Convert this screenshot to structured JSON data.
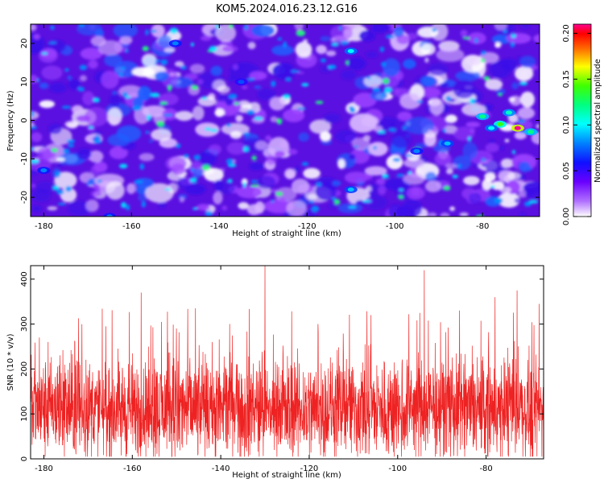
{
  "figure": {
    "title": "KOM5.2024.016.23.12.G16"
  },
  "chart_data": [
    {
      "type": "heatmap",
      "title": "KOM5.2024.016.23.12.G16",
      "xlabel": "Height of straight line (km)",
      "ylabel": "Frequency (Hz)",
      "xlim": [
        -183,
        -67
      ],
      "ylim": [
        -25,
        25
      ],
      "xticks": [
        -180,
        -160,
        -140,
        -120,
        -100,
        -80
      ],
      "yticks": [
        -20,
        -10,
        0,
        10,
        20
      ],
      "colorbar": {
        "label": "Normalized spectral amplitude",
        "range": [
          0,
          0.21
        ],
        "ticks": [
          "0.00",
          "0.05",
          "0.10",
          "0.15",
          "0.20"
        ],
        "colormap": [
          "#ffffff",
          "#8a00ff",
          "#2a00ff",
          "#0066ff",
          "#00ffff",
          "#00ff66",
          "#66ff00",
          "#ffff00",
          "#ff6600",
          "#ff0000",
          "#ff00aa"
        ]
      },
      "hotspots": [
        {
          "x": -80,
          "y": 1,
          "value": 0.12
        },
        {
          "x": -76,
          "y": -1,
          "value": 0.14
        },
        {
          "x": -72,
          "y": -2,
          "value": 0.21
        },
        {
          "x": -69,
          "y": -3,
          "value": 0.12
        },
        {
          "x": -74,
          "y": 2,
          "value": 0.11
        },
        {
          "x": -78,
          "y": -2,
          "value": 0.1
        },
        {
          "x": -110,
          "y": 18,
          "value": 0.1
        },
        {
          "x": -110,
          "y": -18,
          "value": 0.09
        },
        {
          "x": -180,
          "y": -13,
          "value": 0.08
        },
        {
          "x": -165,
          "y": -25,
          "value": 0.08
        },
        {
          "x": -150,
          "y": 20,
          "value": 0.08
        },
        {
          "x": -135,
          "y": 10,
          "value": 0.07
        },
        {
          "x": -95,
          "y": -8,
          "value": 0.08
        },
        {
          "x": -88,
          "y": -6,
          "value": 0.09
        }
      ]
    },
    {
      "type": "line",
      "xlabel": "Height of straight line (km)",
      "ylabel": "SNR (10 * v/v)",
      "xlim": [
        -183,
        -67
      ],
      "ylim": [
        0,
        430
      ],
      "xticks": [
        -180,
        -160,
        -140,
        -120,
        -100,
        -80
      ],
      "yticks": [
        0,
        100,
        200,
        300,
        400
      ],
      "color": "#ee2222",
      "baseline": 110,
      "noise_min": 5,
      "peaks": [
        {
          "x": -181,
          "y": 270
        },
        {
          "x": -173,
          "y": 260
        },
        {
          "x": -166,
          "y": 295
        },
        {
          "x": -158,
          "y": 370
        },
        {
          "x": -150,
          "y": 290
        },
        {
          "x": -138,
          "y": 300
        },
        {
          "x": -130,
          "y": 430
        },
        {
          "x": -118,
          "y": 300
        },
        {
          "x": -106,
          "y": 320
        },
        {
          "x": -94,
          "y": 420
        },
        {
          "x": -86,
          "y": 330
        },
        {
          "x": -78,
          "y": 360
        },
        {
          "x": -73,
          "y": 375
        },
        {
          "x": -68,
          "y": 345
        }
      ]
    }
  ]
}
